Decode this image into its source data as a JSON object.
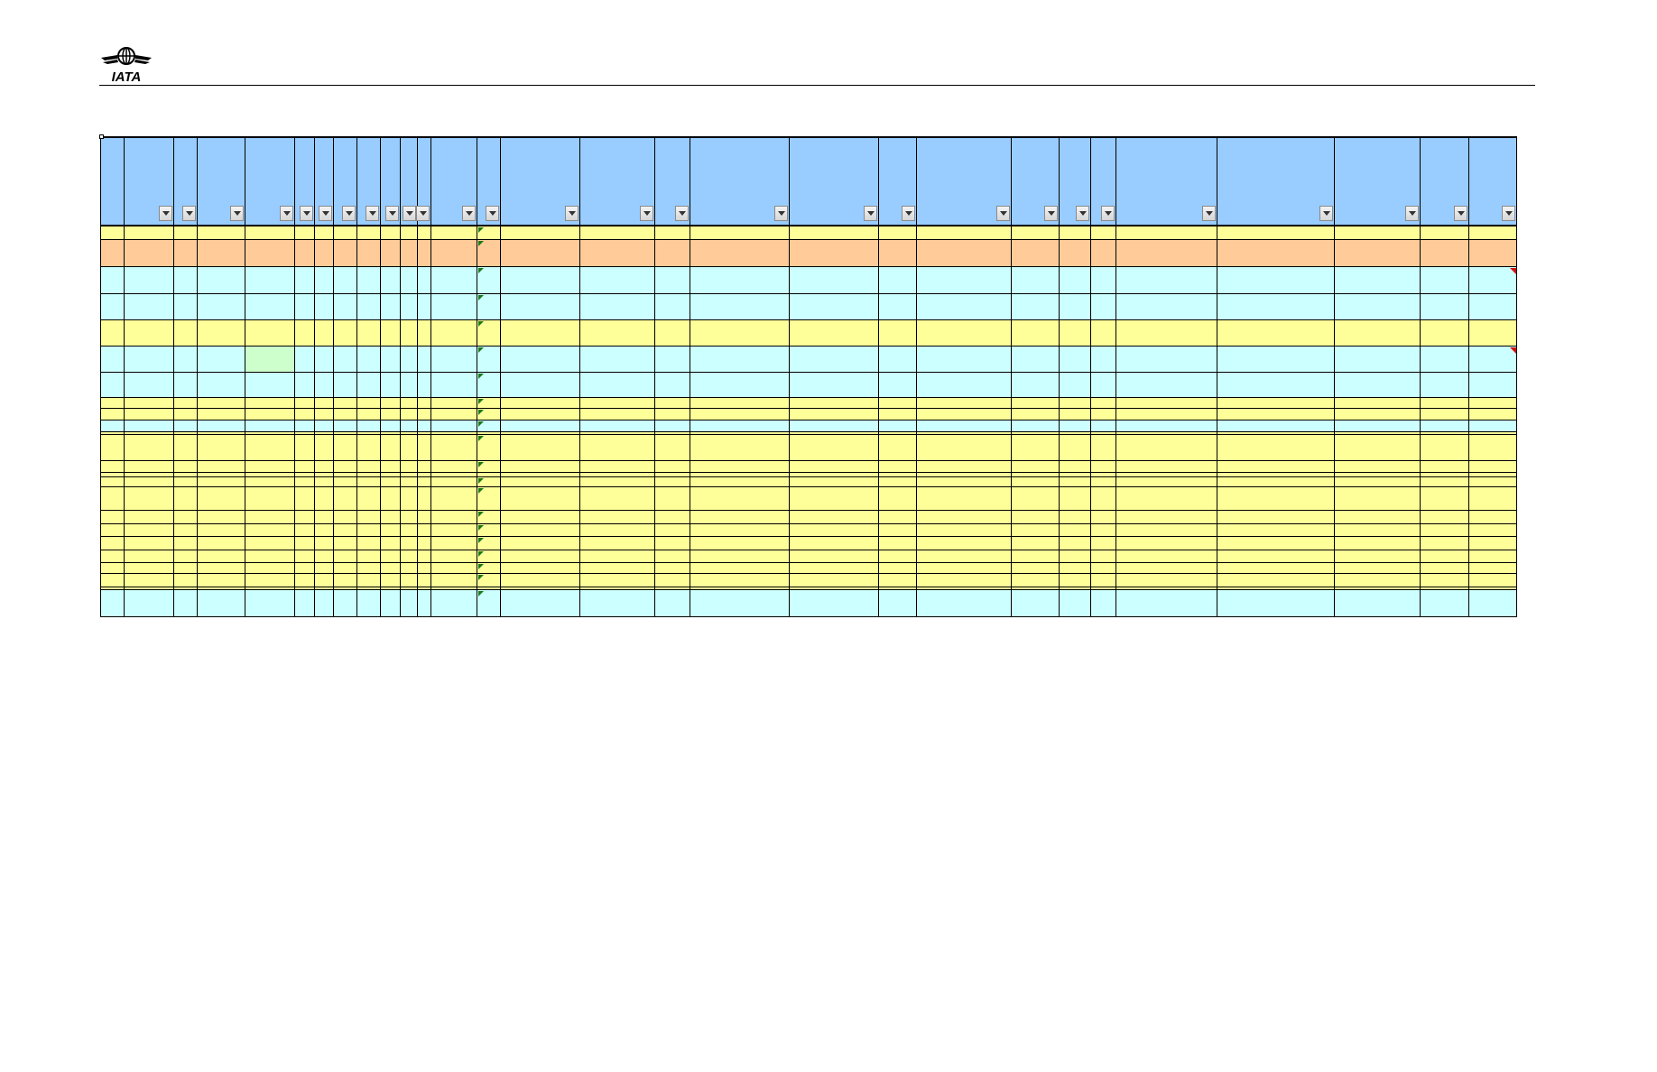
{
  "logo": {
    "text": "IATA",
    "icon": "globe-wings-icon"
  },
  "colors": {
    "header": "#99ccff",
    "yellow": "#ffff99",
    "orange": "#ffcc99",
    "cyan": "#ccffff",
    "light_green": "#ccffcc",
    "grid_line": "#000000",
    "comment_marker": "#d01010",
    "formula_marker": "#1a7a1a"
  },
  "sheet": {
    "column_count": 33,
    "row_count": 24,
    "row_fills": [
      "yellow",
      "orange",
      "cyan",
      "cyan",
      "yellow",
      "cyan",
      "cyan",
      "yellow",
      "yellow",
      "cyan",
      "yellow",
      "yellow",
      "yellow",
      "yellow",
      "yellow",
      "yellow",
      "yellow",
      "yellow",
      "yellow",
      "yellow",
      "yellow",
      "yellow",
      "yellow",
      "cyan"
    ],
    "cells": [],
    "filter_buttons": "autofilter-dropdown-icon"
  }
}
